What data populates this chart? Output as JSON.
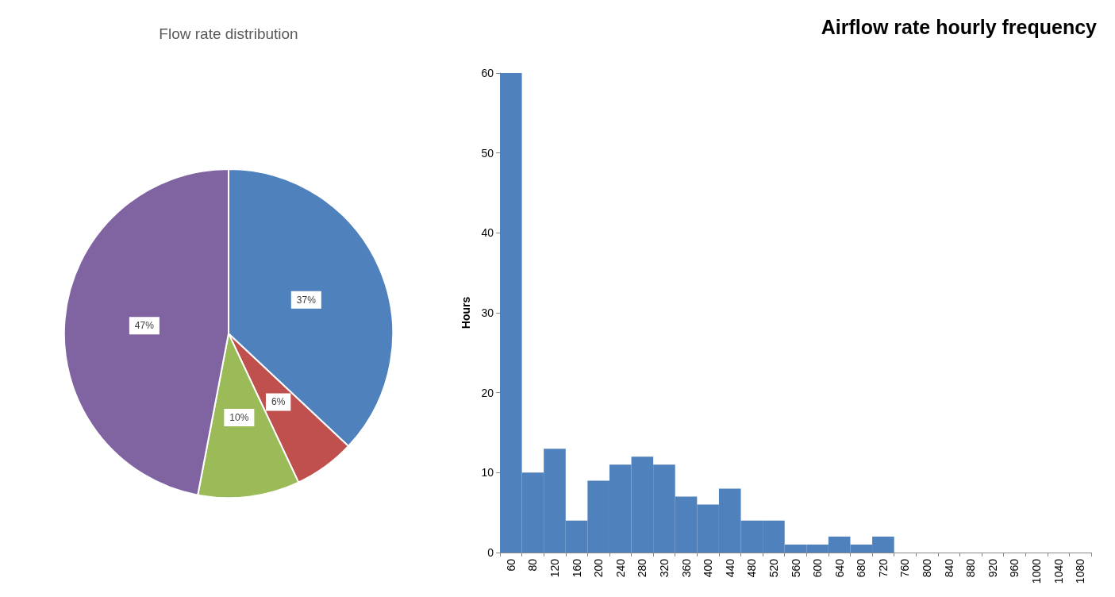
{
  "chart_data": [
    {
      "type": "pie",
      "title": "Flow rate distribution",
      "categories": [
        null,
        null,
        null,
        null
      ],
      "values": [
        37,
        6,
        10,
        47
      ],
      "colors": [
        "#4f81bd",
        "#c0504d",
        "#9bbb59",
        "#8064a2"
      ],
      "value_labels": [
        "37%",
        "6%",
        "10%",
        "47%"
      ]
    },
    {
      "type": "bar",
      "title": "Airflow rate hourly frequency",
      "ylabel": "Hours",
      "categories": [
        "60",
        "80",
        "120",
        "160",
        "200",
        "240",
        "280",
        "320",
        "360",
        "400",
        "440",
        "480",
        "520",
        "560",
        "600",
        "640",
        "680",
        "720",
        "760",
        "800",
        "840",
        "880",
        "920",
        "960",
        "1000",
        "1040",
        "1080"
      ],
      "values": [
        60,
        10,
        13,
        4,
        9,
        11,
        12,
        11,
        7,
        6,
        8,
        4,
        4,
        1,
        1,
        2,
        1,
        2,
        0,
        0,
        0,
        0,
        0,
        0,
        0,
        0,
        0
      ],
      "color": "#4f81bd",
      "ylim": [
        0,
        60
      ],
      "yticks": [
        0,
        10,
        20,
        30,
        40,
        50,
        60
      ],
      "grid": false
    }
  ]
}
